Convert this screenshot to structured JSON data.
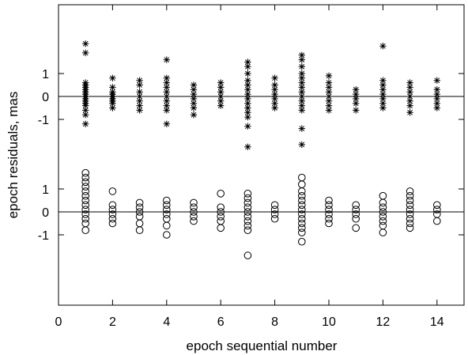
{
  "chart_data": {
    "type": "scatter",
    "title": "",
    "xlabel": "epoch sequential number",
    "ylabel": "epoch residuals, mas",
    "xlim": [
      0,
      15
    ],
    "xticks": [
      0,
      2,
      4,
      6,
      8,
      10,
      12,
      14
    ],
    "grid": false,
    "legend": "none",
    "panels": [
      {
        "name": "upper",
        "marker": "asterisk",
        "baseline": 0,
        "yticks": [
          1,
          0,
          -1
        ],
        "ytick_labels": [
          "1",
          "0",
          "-1"
        ],
        "points": [
          [
            1,
            2.3
          ],
          [
            1,
            1.9
          ],
          [
            1,
            0.6
          ],
          [
            1,
            0.5
          ],
          [
            1,
            0.4
          ],
          [
            1,
            0.3
          ],
          [
            1,
            0.2
          ],
          [
            1,
            0.1
          ],
          [
            1,
            0.0
          ],
          [
            1,
            -0.1
          ],
          [
            1,
            -0.2
          ],
          [
            1,
            -0.3
          ],
          [
            1,
            -0.4
          ],
          [
            1,
            -0.6
          ],
          [
            1,
            -0.8
          ],
          [
            1,
            -1.2
          ],
          [
            2,
            0.8
          ],
          [
            2,
            0.4
          ],
          [
            2,
            0.2
          ],
          [
            2,
            0.1
          ],
          [
            2,
            0.0
          ],
          [
            2,
            -0.1
          ],
          [
            2,
            -0.2
          ],
          [
            2,
            -0.3
          ],
          [
            2,
            -0.5
          ],
          [
            3,
            0.7
          ],
          [
            3,
            0.5
          ],
          [
            3,
            0.2
          ],
          [
            3,
            0.0
          ],
          [
            3,
            -0.2
          ],
          [
            3,
            -0.4
          ],
          [
            3,
            -0.6
          ],
          [
            4,
            1.6
          ],
          [
            4,
            0.8
          ],
          [
            4,
            0.6
          ],
          [
            4,
            0.4
          ],
          [
            4,
            0.2
          ],
          [
            4,
            0.0
          ],
          [
            4,
            -0.2
          ],
          [
            4,
            -0.4
          ],
          [
            4,
            -0.6
          ],
          [
            4,
            -1.2
          ],
          [
            5,
            0.5
          ],
          [
            5,
            0.3
          ],
          [
            5,
            0.1
          ],
          [
            5,
            -0.1
          ],
          [
            5,
            -0.3
          ],
          [
            5,
            -0.5
          ],
          [
            5,
            -0.8
          ],
          [
            6,
            0.6
          ],
          [
            6,
            0.4
          ],
          [
            6,
            0.2
          ],
          [
            6,
            0.0
          ],
          [
            6,
            -0.2
          ],
          [
            6,
            -0.4
          ],
          [
            7,
            1.5
          ],
          [
            7,
            1.3
          ],
          [
            7,
            1.0
          ],
          [
            7,
            0.7
          ],
          [
            7,
            0.5
          ],
          [
            7,
            0.3
          ],
          [
            7,
            0.1
          ],
          [
            7,
            -0.1
          ],
          [
            7,
            -0.3
          ],
          [
            7,
            -0.5
          ],
          [
            7,
            -0.7
          ],
          [
            7,
            -0.9
          ],
          [
            7,
            -1.3
          ],
          [
            7,
            -2.2
          ],
          [
            8,
            0.8
          ],
          [
            8,
            0.5
          ],
          [
            8,
            0.3
          ],
          [
            8,
            0.1
          ],
          [
            8,
            -0.1
          ],
          [
            8,
            -0.3
          ],
          [
            8,
            -0.5
          ],
          [
            9,
            1.8
          ],
          [
            9,
            1.6
          ],
          [
            9,
            1.3
          ],
          [
            9,
            1.0
          ],
          [
            9,
            0.8
          ],
          [
            9,
            0.6
          ],
          [
            9,
            0.4
          ],
          [
            9,
            0.2
          ],
          [
            9,
            0.0
          ],
          [
            9,
            -0.2
          ],
          [
            9,
            -0.4
          ],
          [
            9,
            -0.6
          ],
          [
            9,
            -1.4
          ],
          [
            9,
            -2.1
          ],
          [
            10,
            0.9
          ],
          [
            10,
            0.6
          ],
          [
            10,
            0.4
          ],
          [
            10,
            0.2
          ],
          [
            10,
            0.0
          ],
          [
            10,
            -0.2
          ],
          [
            10,
            -0.4
          ],
          [
            10,
            -0.6
          ],
          [
            11,
            0.3
          ],
          [
            11,
            0.1
          ],
          [
            11,
            -0.1
          ],
          [
            11,
            -0.3
          ],
          [
            11,
            -0.6
          ],
          [
            12,
            2.2
          ],
          [
            12,
            0.7
          ],
          [
            12,
            0.5
          ],
          [
            12,
            0.3
          ],
          [
            12,
            0.1
          ],
          [
            12,
            -0.1
          ],
          [
            12,
            -0.3
          ],
          [
            12,
            -0.5
          ],
          [
            13,
            0.6
          ],
          [
            13,
            0.4
          ],
          [
            13,
            0.2
          ],
          [
            13,
            0.0
          ],
          [
            13,
            -0.2
          ],
          [
            13,
            -0.4
          ],
          [
            13,
            -0.7
          ],
          [
            14,
            0.7
          ],
          [
            14,
            0.3
          ],
          [
            14,
            0.1
          ],
          [
            14,
            -0.1
          ],
          [
            14,
            -0.3
          ],
          [
            14,
            -0.5
          ]
        ]
      },
      {
        "name": "lower",
        "marker": "circle",
        "baseline": 0,
        "yticks": [
          1,
          0,
          -1
        ],
        "ytick_labels": [
          "1",
          "0",
          "-1"
        ],
        "points": [
          [
            1,
            1.7
          ],
          [
            1,
            1.5
          ],
          [
            1,
            1.3
          ],
          [
            1,
            1.1
          ],
          [
            1,
            0.9
          ],
          [
            1,
            0.7
          ],
          [
            1,
            0.5
          ],
          [
            1,
            0.3
          ],
          [
            1,
            0.1
          ],
          [
            1,
            -0.1
          ],
          [
            1,
            -0.3
          ],
          [
            1,
            -0.5
          ],
          [
            1,
            -0.8
          ],
          [
            2,
            0.9
          ],
          [
            2,
            0.3
          ],
          [
            2,
            0.1
          ],
          [
            2,
            -0.1
          ],
          [
            2,
            -0.3
          ],
          [
            2,
            -0.5
          ],
          [
            3,
            0.4
          ],
          [
            3,
            0.2
          ],
          [
            3,
            0.0
          ],
          [
            3,
            -0.2
          ],
          [
            3,
            -0.5
          ],
          [
            3,
            -0.8
          ],
          [
            4,
            0.5
          ],
          [
            4,
            0.3
          ],
          [
            4,
            0.1
          ],
          [
            4,
            -0.1
          ],
          [
            4,
            -0.3
          ],
          [
            4,
            -0.6
          ],
          [
            4,
            -1.0
          ],
          [
            5,
            0.4
          ],
          [
            5,
            0.2
          ],
          [
            5,
            0.0
          ],
          [
            5,
            -0.2
          ],
          [
            5,
            -0.4
          ],
          [
            6,
            0.8
          ],
          [
            6,
            0.2
          ],
          [
            6,
            0.0
          ],
          [
            6,
            -0.2
          ],
          [
            6,
            -0.4
          ],
          [
            6,
            -0.7
          ],
          [
            7,
            0.8
          ],
          [
            7,
            0.6
          ],
          [
            7,
            0.4
          ],
          [
            7,
            0.2
          ],
          [
            7,
            0.0
          ],
          [
            7,
            -0.2
          ],
          [
            7,
            -0.4
          ],
          [
            7,
            -0.6
          ],
          [
            7,
            -0.8
          ],
          [
            7,
            -1.9
          ],
          [
            8,
            0.3
          ],
          [
            8,
            0.1
          ],
          [
            8,
            -0.1
          ],
          [
            8,
            -0.3
          ],
          [
            9,
            1.5
          ],
          [
            9,
            1.2
          ],
          [
            9,
            0.9
          ],
          [
            9,
            0.7
          ],
          [
            9,
            0.5
          ],
          [
            9,
            0.3
          ],
          [
            9,
            0.1
          ],
          [
            9,
            -0.1
          ],
          [
            9,
            -0.3
          ],
          [
            9,
            -0.5
          ],
          [
            9,
            -0.7
          ],
          [
            9,
            -0.9
          ],
          [
            9,
            -1.3
          ],
          [
            10,
            0.5
          ],
          [
            10,
            0.3
          ],
          [
            10,
            0.1
          ],
          [
            10,
            -0.1
          ],
          [
            10,
            -0.3
          ],
          [
            10,
            -0.5
          ],
          [
            11,
            0.3
          ],
          [
            11,
            0.1
          ],
          [
            11,
            -0.1
          ],
          [
            11,
            -0.3
          ],
          [
            11,
            -0.7
          ],
          [
            12,
            0.7
          ],
          [
            12,
            0.4
          ],
          [
            12,
            0.2
          ],
          [
            12,
            0.0
          ],
          [
            12,
            -0.2
          ],
          [
            12,
            -0.4
          ],
          [
            12,
            -0.6
          ],
          [
            12,
            -0.9
          ],
          [
            13,
            0.9
          ],
          [
            13,
            0.7
          ],
          [
            13,
            0.5
          ],
          [
            13,
            0.3
          ],
          [
            13,
            0.1
          ],
          [
            13,
            -0.1
          ],
          [
            13,
            -0.3
          ],
          [
            13,
            -0.5
          ],
          [
            13,
            -0.7
          ],
          [
            14,
            0.3
          ],
          [
            14,
            0.1
          ],
          [
            14,
            -0.1
          ],
          [
            14,
            -0.4
          ]
        ]
      }
    ]
  }
}
